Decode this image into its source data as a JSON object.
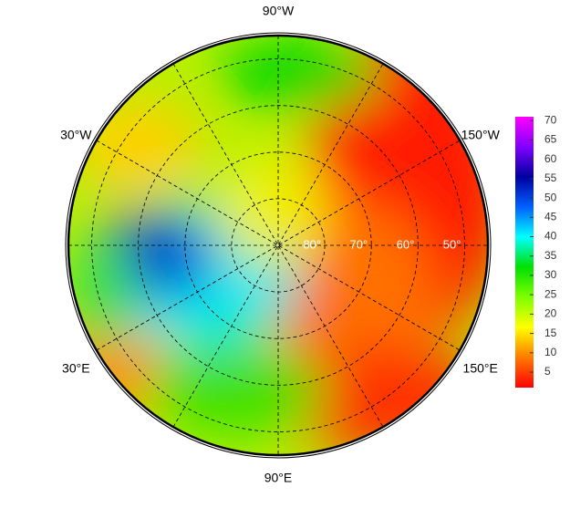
{
  "chart_data": {
    "type": "polar-map",
    "lon_labels": [
      {
        "value": -90,
        "label": "90°W"
      },
      {
        "value": -30,
        "label": "30°W"
      },
      {
        "value": -150,
        "label": "150°W"
      },
      {
        "value": 30,
        "label": "30°E"
      },
      {
        "value": 150,
        "label": "150°E"
      },
      {
        "value": 90,
        "label": "90°E"
      }
    ],
    "lat_circles": [
      {
        "value": 80,
        "label": "80°"
      },
      {
        "value": 70,
        "label": "70°"
      },
      {
        "value": 60,
        "label": "60°"
      },
      {
        "value": 50,
        "label": "50°"
      }
    ],
    "lat_limit": 45,
    "colorbar": {
      "lim": [
        1,
        71
      ],
      "ticks": [
        5,
        10,
        15,
        20,
        25,
        30,
        35,
        40,
        45,
        50,
        55,
        60,
        65,
        70
      ],
      "colors": [
        "#ff0000",
        "#ff7a00",
        "#ffff00",
        "#7fff00",
        "#00e000",
        "#00ffff",
        "#0060ff",
        "#0000a0",
        "#8000ff",
        "#ff00ff"
      ]
    }
  }
}
